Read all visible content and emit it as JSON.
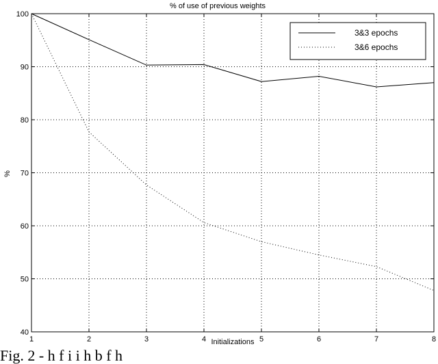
{
  "chart_data": {
    "type": "line",
    "title": "% of use of previous weights",
    "xlabel": "Initializations",
    "ylabel": "%",
    "x": [
      1,
      2,
      3,
      4,
      5,
      6,
      7,
      8
    ],
    "xlim": [
      1,
      8
    ],
    "ylim": [
      40,
      100
    ],
    "xticks": [
      1,
      2,
      3,
      4,
      5,
      6,
      7,
      8
    ],
    "yticks": [
      40,
      50,
      60,
      70,
      80,
      90,
      100
    ],
    "grid": true,
    "legend_position": "top-right",
    "series": [
      {
        "name": "3&3 epochs",
        "style": "solid",
        "values": [
          100,
          95.1,
          90.3,
          90.4,
          87.2,
          88.2,
          86.2,
          87.0
        ]
      },
      {
        "name": "3&6 epochs",
        "style": "dotted",
        "values": [
          100,
          77.7,
          67.7,
          60.6,
          57.0,
          54.5,
          52.3,
          47.8
        ]
      }
    ]
  },
  "caption": "Fig. 2 - h                  f    i            i h                               b      f        h"
}
